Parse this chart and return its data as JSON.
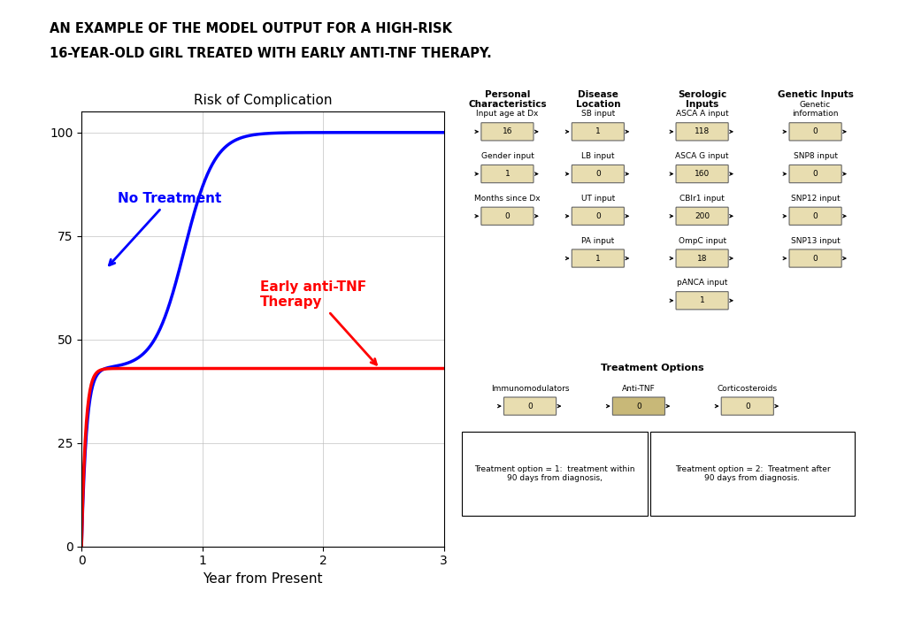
{
  "title_line1": "AN EXAMPLE OF THE MODEL OUTPUT FOR A HIGH-RISK",
  "title_line2": "16-YEAR-OLD GIRL TREATED WITH EARLY ANTI-TNF THERAPY.",
  "chart_title": "Risk of Complication",
  "xlabel": "Year from Present",
  "xlim": [
    0,
    3
  ],
  "ylim": [
    0,
    105
  ],
  "yticks": [
    0,
    25,
    50,
    75,
    100
  ],
  "xticks": [
    0,
    1,
    2,
    3
  ],
  "no_treatment_label": "No Treatment",
  "therapy_label": "Early anti-TNF\nTherapy",
  "blue_color": "#0000FF",
  "red_color": "#FF0000",
  "orange_sidebar_color": "#E87722",
  "bg_color": "#FFFFFF",
  "col_headers": [
    "Personal\nCharacteristics",
    "Disease\nLocation",
    "Serologic\nInputs",
    "Genetic Inputs"
  ],
  "treatment_header": "Treatment Options",
  "treatment_labels": [
    "Immunomodulators",
    "Anti-TNF",
    "Corticosteroids"
  ],
  "treatment_values": [
    "0",
    "0",
    "0"
  ],
  "box1_text": "Treatment option = 1:  treatment within\n90 days from diagnosis,",
  "box2_text": "Treatment option = 2:  Treatment after\n90 days from diagnosis."
}
